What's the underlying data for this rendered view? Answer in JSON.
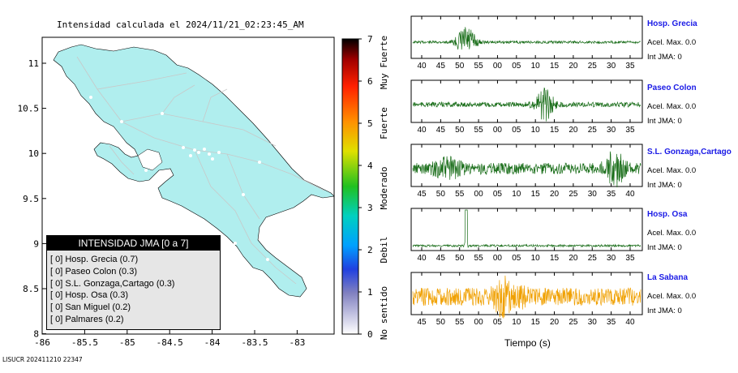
{
  "map": {
    "title": "Intensidad calculada el 2024/11/21_02:23:45_AM",
    "x_ticks": [
      "-86",
      "-85.5",
      "-85",
      "-84.5",
      "-84",
      "-83.5",
      "-83"
    ],
    "y_ticks": [
      "11",
      "10.5",
      "10",
      "9.5",
      "9",
      "8.5",
      "8"
    ],
    "land_color": "#b0eeee",
    "footer": "LISUCR 202411210 22347"
  },
  "colorbar": {
    "ticks": [
      "0",
      "1",
      "2",
      "3",
      "4",
      "5",
      "6",
      "7"
    ],
    "labels": [
      "No sentido",
      "Debil",
      "Moderado",
      "Fuerte",
      "Muy Fuerte"
    ]
  },
  "legend": {
    "title": "INTENSIDAD JMA [0 a 7]",
    "rows": [
      "[ 0]  Hosp. Grecia (0.7)",
      "[ 0]  Paseo Colon (0.3)",
      "[ 0]  S.L. Gonzaga,Cartago (0.3)",
      "[ 0]  Hosp. Osa (0.3)",
      "[ 0]  San Miguel (0.2)",
      "[ 0]  Palmares (0.2)"
    ]
  },
  "traces_xlabel": "Tiempo (s)",
  "chart_data": [
    {
      "type": "line",
      "title": "Intensidad calculada el 2024/11/21_02:23:45_AM",
      "series": [
        {
          "name": "Hosp. Grecia",
          "accel_label": "Acel. Max. 0.0",
          "int_label": "Int JMA: 0",
          "color": "#1a6e1a",
          "x_tick_labels": [
            "40",
            "45",
            "50",
            "55",
            "00",
            "05",
            "10",
            "15",
            "20",
            "25",
            "30",
            "35"
          ],
          "burst_at_tick": 2.35,
          "burst_amp": 1.0,
          "noise": 0.08
        },
        {
          "name": "Paseo Colon",
          "accel_label": "Acel. Max. 0.0",
          "int_label": "Int JMA: 0",
          "color": "#1a6e1a",
          "x_tick_labels": [
            "40",
            "45",
            "50",
            "55",
            "00",
            "05",
            "10",
            "15",
            "20",
            "25",
            "30",
            "35"
          ],
          "burst_at_tick": 6.5,
          "burst_amp": 0.9,
          "noise": 0.15
        },
        {
          "name": "S.L. Gonzaga,Cartago",
          "accel_label": "Acel. Max. 0.0",
          "int_label": "Int JMA: 0",
          "color": "#1a6e1a",
          "x_tick_labels": [
            "45",
            "50",
            "55",
            "00",
            "05",
            "10",
            "15",
            "20",
            "25",
            "30",
            "35",
            "40"
          ],
          "burst_at_tick": 10.2,
          "burst_amp": 1.0,
          "noise": 0.35
        },
        {
          "name": "Hosp. Osa",
          "accel_label": "Acel. Max. 0.0",
          "int_label": "Int JMA: 0",
          "color": "#1a6e1a",
          "x_tick_labels": [
            "40",
            "45",
            "50",
            "55",
            "00",
            "05",
            "10",
            "15",
            "20",
            "25",
            "30",
            "35"
          ],
          "burst_at_tick": 2.35,
          "burst_amp": 1.0,
          "noise": 0.06
        },
        {
          "name": "La Sabana",
          "accel_label": "Acel. Max. 0.0",
          "int_label": "Int JMA: 0",
          "color": "#f0a000",
          "x_tick_labels": [
            "45",
            "50",
            "55",
            "00",
            "05",
            "10",
            "15",
            "20",
            "25",
            "30",
            "35",
            "40"
          ],
          "burst_at_tick": 4.3,
          "burst_amp": 0.9,
          "noise": 0.55
        }
      ]
    }
  ]
}
